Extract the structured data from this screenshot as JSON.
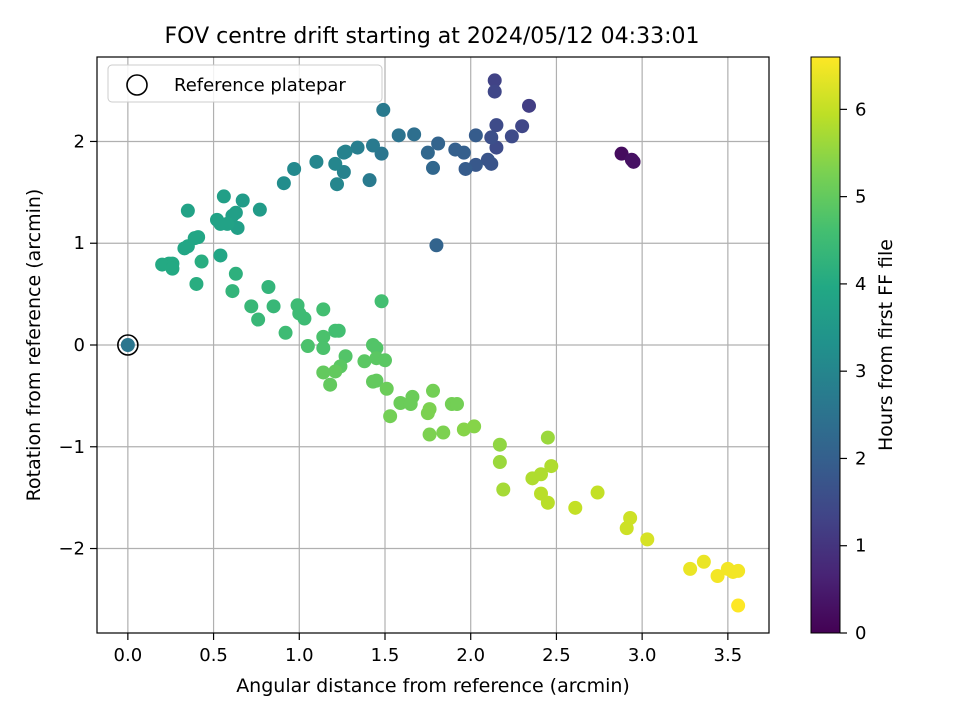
{
  "chart_data": {
    "type": "scatter",
    "title": "FOV centre drift starting at 2024/05/12 04:33:01",
    "xlabel": "Angular distance from reference (arcmin)",
    "ylabel": "Rotation from reference (arcmin)",
    "xlim": [
      -0.18,
      3.74
    ],
    "ylim": [
      -2.83,
      2.83
    ],
    "x_ticks": [
      0.0,
      0.5,
      1.0,
      1.5,
      2.0,
      2.5,
      3.0,
      3.5
    ],
    "x_tick_labels": [
      "0.0",
      "0.5",
      "1.0",
      "1.5",
      "2.0",
      "2.5",
      "3.0",
      "3.5"
    ],
    "y_ticks": [
      -2,
      -1,
      0,
      1,
      2
    ],
    "y_tick_labels": [
      "−2",
      "−1",
      "0",
      "1",
      "2"
    ],
    "grid": true,
    "legend": {
      "position": "top-left",
      "entries": [
        "Reference platepar"
      ]
    },
    "colorbar": {
      "label": "Hours from first FF file",
      "colormap": "viridis",
      "range": [
        0,
        6.6
      ],
      "ticks": [
        0,
        1,
        2,
        3,
        4,
        5,
        6
      ],
      "tick_labels": [
        "0",
        "1",
        "2",
        "3",
        "4",
        "5",
        "6"
      ]
    },
    "reference_point": {
      "x": 0.0,
      "y": 0.0
    },
    "points": [
      {
        "x": 2.88,
        "y": 1.88,
        "c": 0.2
      },
      {
        "x": 2.94,
        "y": 1.82,
        "c": 0.3
      },
      {
        "x": 2.95,
        "y": 1.8,
        "c": 0.3
      },
      {
        "x": 2.34,
        "y": 2.35,
        "c": 1.2
      },
      {
        "x": 2.14,
        "y": 2.6,
        "c": 1.3
      },
      {
        "x": 2.14,
        "y": 2.49,
        "c": 1.4
      },
      {
        "x": 2.15,
        "y": 2.16,
        "c": 1.5
      },
      {
        "x": 2.15,
        "y": 1.94,
        "c": 1.5
      },
      {
        "x": 2.3,
        "y": 2.15,
        "c": 1.4
      },
      {
        "x": 2.24,
        "y": 2.05,
        "c": 1.5
      },
      {
        "x": 2.12,
        "y": 2.04,
        "c": 1.6
      },
      {
        "x": 2.12,
        "y": 1.78,
        "c": 1.7
      },
      {
        "x": 2.1,
        "y": 1.82,
        "c": 1.7
      },
      {
        "x": 2.03,
        "y": 1.77,
        "c": 1.8
      },
      {
        "x": 2.03,
        "y": 2.06,
        "c": 1.9
      },
      {
        "x": 1.97,
        "y": 1.73,
        "c": 1.9
      },
      {
        "x": 1.96,
        "y": 1.89,
        "c": 2.0
      },
      {
        "x": 1.91,
        "y": 1.92,
        "c": 2.0
      },
      {
        "x": 1.81,
        "y": 1.98,
        "c": 2.1
      },
      {
        "x": 1.75,
        "y": 1.89,
        "c": 2.2
      },
      {
        "x": 1.78,
        "y": 1.74,
        "c": 2.2
      },
      {
        "x": 1.8,
        "y": 0.98,
        "c": 2.1
      },
      {
        "x": 1.67,
        "y": 2.07,
        "c": 2.4
      },
      {
        "x": 1.58,
        "y": 2.06,
        "c": 2.5
      },
      {
        "x": 1.49,
        "y": 2.31,
        "c": 2.7
      },
      {
        "x": 1.48,
        "y": 1.88,
        "c": 2.6
      },
      {
        "x": 1.43,
        "y": 1.96,
        "c": 2.7
      },
      {
        "x": 1.41,
        "y": 1.62,
        "c": 2.7
      },
      {
        "x": 1.34,
        "y": 1.94,
        "c": 2.8
      },
      {
        "x": 1.27,
        "y": 1.9,
        "c": 2.9
      },
      {
        "x": 1.26,
        "y": 1.89,
        "c": 2.9
      },
      {
        "x": 1.26,
        "y": 1.7,
        "c": 2.9
      },
      {
        "x": 1.22,
        "y": 1.58,
        "c": 3.0
      },
      {
        "x": 1.21,
        "y": 1.78,
        "c": 3.0
      },
      {
        "x": 1.1,
        "y": 1.8,
        "c": 3.0
      },
      {
        "x": 0.97,
        "y": 1.73,
        "c": 3.1
      },
      {
        "x": 0.91,
        "y": 1.59,
        "c": 3.2
      },
      {
        "x": 0.77,
        "y": 1.33,
        "c": 3.6
      },
      {
        "x": 0.67,
        "y": 1.42,
        "c": 3.6
      },
      {
        "x": 0.63,
        "y": 1.3,
        "c": 3.7
      },
      {
        "x": 0.61,
        "y": 1.27,
        "c": 3.7
      },
      {
        "x": 0.64,
        "y": 1.15,
        "c": 3.7
      },
      {
        "x": 0.56,
        "y": 1.46,
        "c": 3.7
      },
      {
        "x": 0.58,
        "y": 1.19,
        "c": 3.8
      },
      {
        "x": 0.52,
        "y": 1.23,
        "c": 3.8
      },
      {
        "x": 0.54,
        "y": 1.19,
        "c": 3.8
      },
      {
        "x": 0.35,
        "y": 1.32,
        "c": 3.8
      },
      {
        "x": 0.41,
        "y": 1.06,
        "c": 3.9
      },
      {
        "x": 0.39,
        "y": 1.05,
        "c": 3.9
      },
      {
        "x": 0.35,
        "y": 0.97,
        "c": 3.9
      },
      {
        "x": 0.33,
        "y": 0.95,
        "c": 3.9
      },
      {
        "x": 0.54,
        "y": 0.88,
        "c": 3.9
      },
      {
        "x": 0.24,
        "y": 0.8,
        "c": 4.0
      },
      {
        "x": 0.26,
        "y": 0.8,
        "c": 4.0
      },
      {
        "x": 0.2,
        "y": 0.79,
        "c": 4.0
      },
      {
        "x": 0.26,
        "y": 0.75,
        "c": 4.0
      },
      {
        "x": 0.43,
        "y": 0.82,
        "c": 4.1
      },
      {
        "x": 0.4,
        "y": 0.6,
        "c": 4.1
      },
      {
        "x": 0.63,
        "y": 0.7,
        "c": 4.2
      },
      {
        "x": 0.61,
        "y": 0.53,
        "c": 4.3
      },
      {
        "x": 0.82,
        "y": 0.57,
        "c": 4.3
      },
      {
        "x": 0.72,
        "y": 0.38,
        "c": 4.4
      },
      {
        "x": 0.85,
        "y": 0.38,
        "c": 4.4
      },
      {
        "x": 0.76,
        "y": 0.25,
        "c": 4.4
      },
      {
        "x": 0.99,
        "y": 0.39,
        "c": 4.5
      },
      {
        "x": 1.0,
        "y": 0.31,
        "c": 4.5
      },
      {
        "x": 1.03,
        "y": 0.26,
        "c": 4.5
      },
      {
        "x": 1.14,
        "y": 0.35,
        "c": 4.6
      },
      {
        "x": 1.48,
        "y": 0.43,
        "c": 4.6
      },
      {
        "x": 0.92,
        "y": 0.12,
        "c": 4.5
      },
      {
        "x": 1.21,
        "y": 0.14,
        "c": 4.6
      },
      {
        "x": 1.23,
        "y": 0.14,
        "c": 4.6
      },
      {
        "x": 1.14,
        "y": 0.08,
        "c": 4.7
      },
      {
        "x": 1.05,
        "y": -0.01,
        "c": 4.7
      },
      {
        "x": 1.14,
        "y": -0.03,
        "c": 4.7
      },
      {
        "x": 1.43,
        "y": 0.0,
        "c": 4.8
      },
      {
        "x": 1.45,
        "y": -0.03,
        "c": 4.8
      },
      {
        "x": 1.27,
        "y": -0.11,
        "c": 4.8
      },
      {
        "x": 1.45,
        "y": -0.13,
        "c": 4.9
      },
      {
        "x": 1.5,
        "y": -0.15,
        "c": 4.9
      },
      {
        "x": 1.38,
        "y": -0.16,
        "c": 4.9
      },
      {
        "x": 1.24,
        "y": -0.21,
        "c": 4.9
      },
      {
        "x": 1.21,
        "y": -0.26,
        "c": 5.0
      },
      {
        "x": 1.14,
        "y": -0.27,
        "c": 5.0
      },
      {
        "x": 1.18,
        "y": -0.39,
        "c": 5.0
      },
      {
        "x": 1.43,
        "y": -0.36,
        "c": 5.0
      },
      {
        "x": 1.45,
        "y": -0.35,
        "c": 5.0
      },
      {
        "x": 1.51,
        "y": -0.43,
        "c": 5.1
      },
      {
        "x": 1.59,
        "y": -0.57,
        "c": 5.1
      },
      {
        "x": 1.66,
        "y": -0.51,
        "c": 5.1
      },
      {
        "x": 1.65,
        "y": -0.58,
        "c": 5.1
      },
      {
        "x": 1.53,
        "y": -0.7,
        "c": 5.2
      },
      {
        "x": 1.78,
        "y": -0.45,
        "c": 5.2
      },
      {
        "x": 1.89,
        "y": -0.58,
        "c": 5.2
      },
      {
        "x": 1.92,
        "y": -0.58,
        "c": 5.2
      },
      {
        "x": 1.76,
        "y": -0.63,
        "c": 5.3
      },
      {
        "x": 1.75,
        "y": -0.67,
        "c": 5.3
      },
      {
        "x": 1.76,
        "y": -0.88,
        "c": 5.3
      },
      {
        "x": 1.84,
        "y": -0.86,
        "c": 5.3
      },
      {
        "x": 1.96,
        "y": -0.83,
        "c": 5.4
      },
      {
        "x": 2.02,
        "y": -0.8,
        "c": 5.4
      },
      {
        "x": 2.17,
        "y": -0.98,
        "c": 5.5
      },
      {
        "x": 2.17,
        "y": -1.15,
        "c": 5.6
      },
      {
        "x": 2.45,
        "y": -0.91,
        "c": 5.6
      },
      {
        "x": 2.19,
        "y": -1.42,
        "c": 5.7
      },
      {
        "x": 2.36,
        "y": -1.31,
        "c": 5.8
      },
      {
        "x": 2.41,
        "y": -1.27,
        "c": 5.8
      },
      {
        "x": 2.47,
        "y": -1.19,
        "c": 5.8
      },
      {
        "x": 2.41,
        "y": -1.46,
        "c": 5.9
      },
      {
        "x": 2.45,
        "y": -1.55,
        "c": 5.9
      },
      {
        "x": 2.61,
        "y": -1.6,
        "c": 6.0
      },
      {
        "x": 2.74,
        "y": -1.45,
        "c": 6.0
      },
      {
        "x": 2.93,
        "y": -1.7,
        "c": 6.1
      },
      {
        "x": 2.91,
        "y": -1.8,
        "c": 6.1
      },
      {
        "x": 3.03,
        "y": -1.91,
        "c": 6.2
      },
      {
        "x": 3.28,
        "y": -2.2,
        "c": 6.4
      },
      {
        "x": 3.36,
        "y": -2.13,
        "c": 6.4
      },
      {
        "x": 3.44,
        "y": -2.27,
        "c": 6.5
      },
      {
        "x": 3.5,
        "y": -2.2,
        "c": 6.5
      },
      {
        "x": 3.53,
        "y": -2.23,
        "c": 6.5
      },
      {
        "x": 3.56,
        "y": -2.22,
        "c": 6.5
      },
      {
        "x": 3.56,
        "y": -2.56,
        "c": 6.6
      },
      {
        "x": 0.0,
        "y": 0.0,
        "c": 2.6
      }
    ]
  }
}
